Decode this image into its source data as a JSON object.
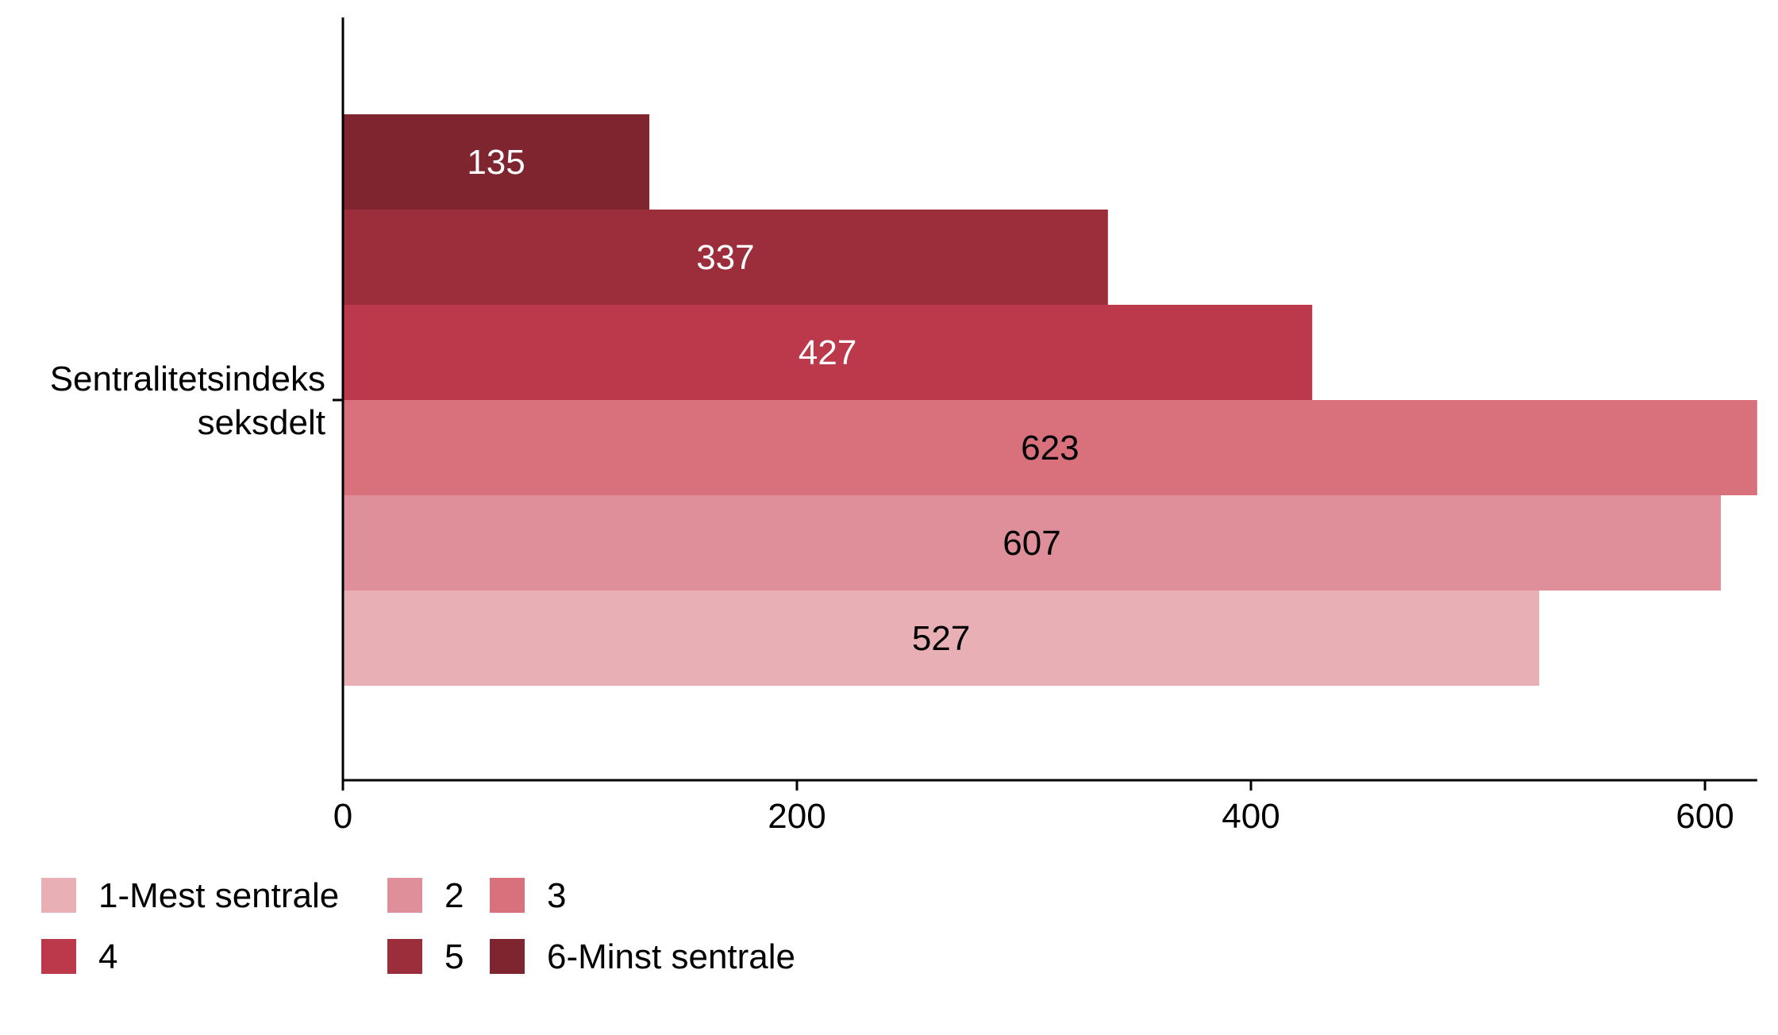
{
  "chart_data": {
    "type": "bar",
    "orientation": "horizontal",
    "category": "Sentralitetsindeks seksdelt",
    "category_lines": [
      "Sentralitetsindeks",
      "seksdelt"
    ],
    "series": [
      {
        "name": "1-Mest sentrale",
        "value": 527,
        "color": "#E8B0B5",
        "label_color": "#000000"
      },
      {
        "name": "2",
        "value": 607,
        "color": "#DE8F99",
        "label_color": "#000000"
      },
      {
        "name": "3",
        "value": 623,
        "color": "#D8717C",
        "label_color": "#000000"
      },
      {
        "name": "4",
        "value": 427,
        "color": "#BC384B",
        "label_color": "#ffffff"
      },
      {
        "name": "5",
        "value": 337,
        "color": "#9C2D3B",
        "label_color": "#ffffff"
      },
      {
        "name": "6-Minst sentrale",
        "value": 135,
        "color": "#7E2530",
        "label_color": "#ffffff"
      }
    ],
    "x_ticks": [
      0,
      200,
      400,
      600
    ],
    "xlim": [
      0,
      623
    ],
    "xlabel": "",
    "ylabel": "",
    "title": "",
    "grid": false,
    "legend_position": "bottom"
  }
}
